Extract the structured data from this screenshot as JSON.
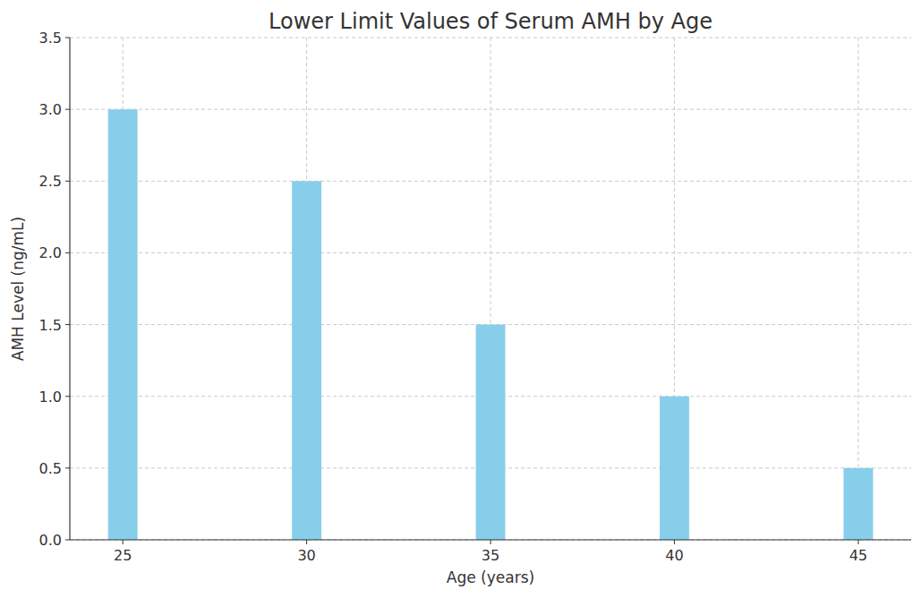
{
  "chart_data": {
    "type": "bar",
    "title": "Lower Limit Values of Serum AMH by Age",
    "x_label": "Age (years)",
    "y_label": "AMH Level (ng/mL)",
    "x": [
      25,
      30,
      35,
      40,
      45
    ],
    "values": [
      3.0,
      2.5,
      1.5,
      1.0,
      0.5
    ],
    "color": "#87ceeb",
    "xlim": [
      23.56,
      46.44
    ],
    "xticks": [
      25,
      30,
      35,
      40,
      45
    ],
    "ylim": [
      0,
      3.5
    ],
    "yticks": [
      0,
      0.5,
      1,
      1.5,
      2,
      2.5,
      3,
      3.5
    ],
    "grid": true
  }
}
